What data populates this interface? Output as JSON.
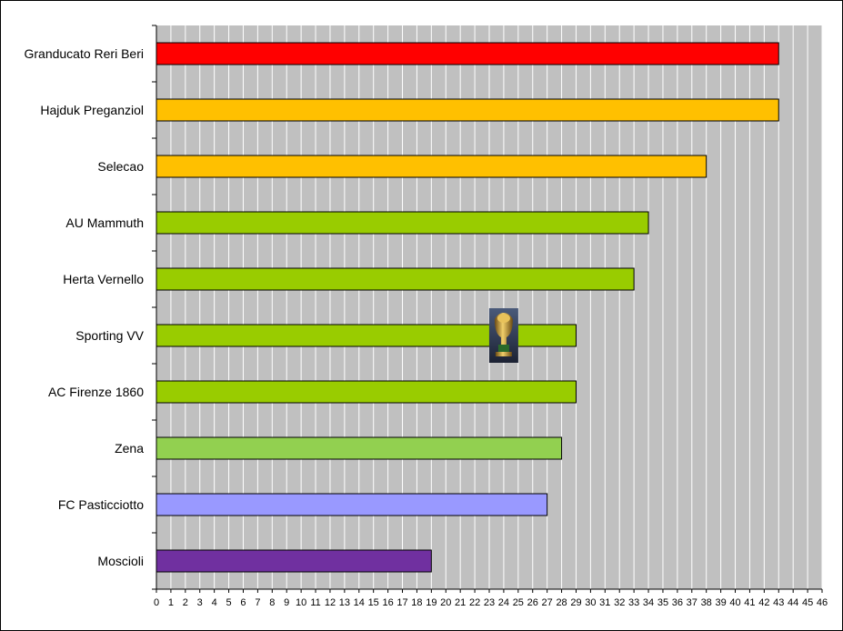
{
  "chart_data": {
    "type": "bar",
    "orientation": "horizontal",
    "title": "",
    "xlabel": "",
    "ylabel": "",
    "xlim": [
      0,
      46
    ],
    "x_ticks": [
      0,
      1,
      2,
      3,
      4,
      5,
      6,
      7,
      8,
      9,
      10,
      11,
      12,
      13,
      14,
      15,
      16,
      17,
      18,
      19,
      20,
      21,
      22,
      23,
      24,
      25,
      26,
      27,
      28,
      29,
      30,
      31,
      32,
      33,
      34,
      35,
      36,
      37,
      38,
      39,
      40,
      41,
      42,
      43,
      44,
      45,
      46
    ],
    "grid": true,
    "plot_background": "#c0c0c0",
    "categories": [
      "Granducato Reri Beri",
      "Hajduk Preganziol",
      "Selecao",
      "AU Mammuth",
      "Herta Vernello",
      "Sporting VV",
      "AC Firenze 1860",
      "Zena",
      "FC Pasticciotto",
      "Moscioli"
    ],
    "values": [
      43,
      43,
      38,
      34,
      33,
      29,
      29,
      28,
      27,
      19
    ],
    "colors": [
      "#ff0000",
      "#ffc000",
      "#ffc000",
      "#99cc00",
      "#99cc00",
      "#99cc00",
      "#99cc00",
      "#92d050",
      "#9999ff",
      "#7030a0"
    ],
    "annotations": [
      {
        "type": "trophy-icon",
        "category": "Sporting VV",
        "x": 24
      }
    ]
  }
}
